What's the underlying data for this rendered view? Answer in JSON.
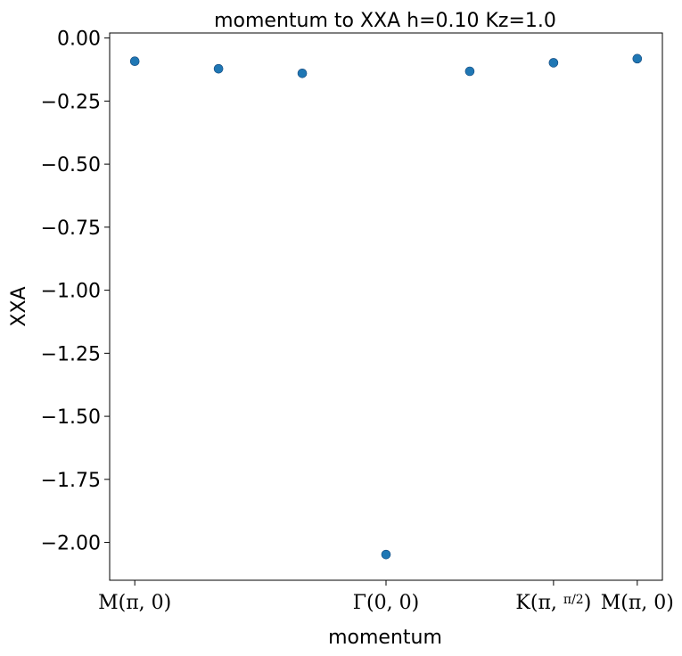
{
  "chart_data": {
    "type": "scatter",
    "title": "momentum to XXA h=0.10 Kz=1.0",
    "xlabel": "momentum",
    "ylabel": "XXA",
    "xlim": [
      -0.3,
      6.3
    ],
    "ylim": [
      -2.15,
      0.02
    ],
    "x_ticks": [
      {
        "value": 0,
        "label": "M(π, 0)"
      },
      {
        "value": 3,
        "label": "Γ(0, 0)"
      },
      {
        "value": 5,
        "label": "K(π, π/2)"
      },
      {
        "value": 6,
        "label": "M(π, 0)"
      }
    ],
    "y_ticks": [
      0.0,
      -0.25,
      -0.5,
      -0.75,
      -1.0,
      -1.25,
      -1.5,
      -1.75,
      -2.0
    ],
    "y_tick_labels": [
      "0.00",
      "−0.25",
      "−0.50",
      "−0.75",
      "−1.00",
      "−1.25",
      "−1.50",
      "−1.75",
      "−2.00"
    ],
    "grid": false,
    "marker_color": "#1f77b4",
    "points": [
      {
        "x": 0,
        "y": -0.092
      },
      {
        "x": 1,
        "y": -0.122
      },
      {
        "x": 2,
        "y": -0.14
      },
      {
        "x": 3,
        "y": -2.048
      },
      {
        "x": 4,
        "y": -0.132
      },
      {
        "x": 5,
        "y": -0.098
      },
      {
        "x": 6,
        "y": -0.082
      }
    ]
  }
}
